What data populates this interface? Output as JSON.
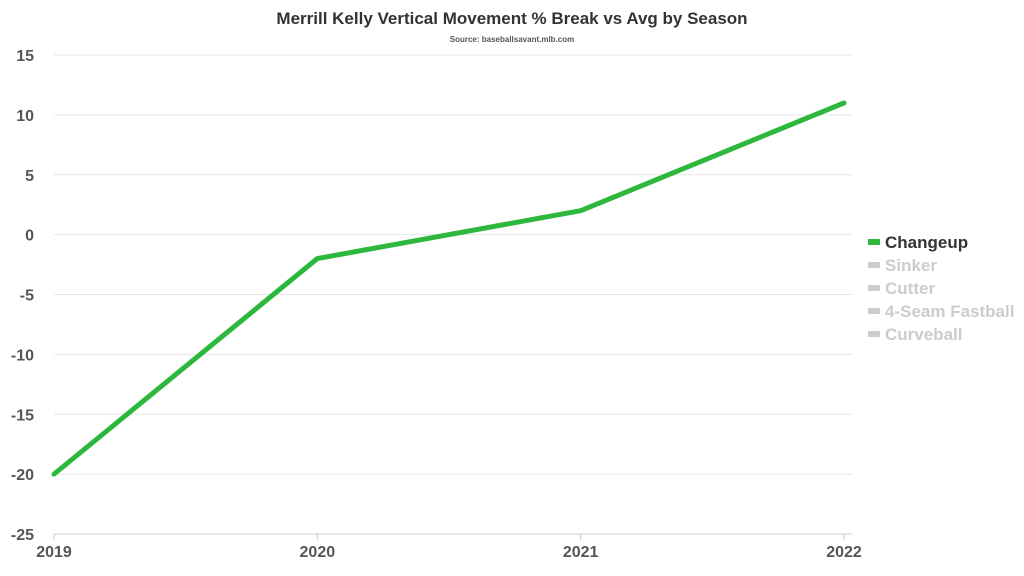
{
  "chart_data": {
    "type": "line",
    "title": "Merrill Kelly Vertical Movement % Break vs Avg by Season",
    "subtitle": "Source: baseballsavant.mlb.com",
    "xlabel": "",
    "ylabel": "",
    "x": [
      "2019",
      "2020",
      "2021",
      "2022"
    ],
    "ylim": [
      -25,
      15
    ],
    "yticks": [
      15,
      10,
      5,
      0,
      -5,
      -10,
      -15,
      -20,
      -25
    ],
    "grid": true,
    "legend_position": "right",
    "series": [
      {
        "name": "Changeup",
        "values": [
          -20,
          -2,
          2,
          11
        ],
        "color": "#2db83d",
        "active": true
      }
    ],
    "legend": [
      {
        "name": "Changeup",
        "color": "#2db83d",
        "text_color": "#333333",
        "active": true
      },
      {
        "name": "Sinker",
        "color": "#cccccc",
        "text_color": "#cccccc",
        "active": false
      },
      {
        "name": "Cutter",
        "color": "#cccccc",
        "text_color": "#cccccc",
        "active": false
      },
      {
        "name": "4-Seam Fastball",
        "color": "#cccccc",
        "text_color": "#cccccc",
        "active": false
      },
      {
        "name": "Curveball",
        "color": "#cccccc",
        "text_color": "#cccccc",
        "active": false
      }
    ]
  }
}
